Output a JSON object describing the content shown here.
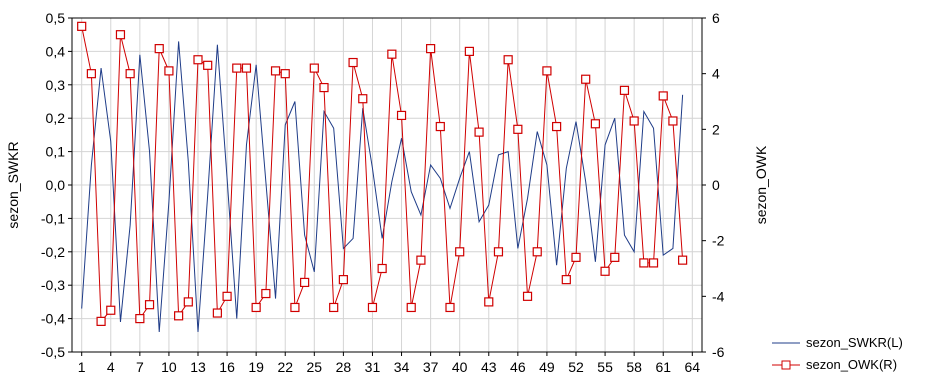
{
  "chart_data": {
    "type": "line",
    "title": "",
    "x": [
      1,
      2,
      3,
      4,
      5,
      6,
      7,
      8,
      9,
      10,
      11,
      12,
      13,
      14,
      15,
      16,
      17,
      18,
      19,
      20,
      21,
      22,
      23,
      24,
      25,
      26,
      27,
      28,
      29,
      30,
      31,
      32,
      33,
      34,
      35,
      36,
      37,
      38,
      39,
      40,
      41,
      42,
      43,
      44,
      45,
      46,
      47,
      48,
      49,
      50,
      51,
      52,
      53,
      54,
      55,
      56,
      57,
      58,
      59,
      60,
      61,
      62,
      63
    ],
    "xlim": [
      0,
      65
    ],
    "xticks": [
      1,
      4,
      7,
      10,
      13,
      16,
      19,
      22,
      25,
      28,
      31,
      34,
      37,
      40,
      43,
      46,
      49,
      52,
      55,
      58,
      61,
      64
    ],
    "xlabel": "",
    "left_axis": {
      "label": "sezon_SWKR",
      "ylim": [
        -0.5,
        0.5
      ],
      "ticks": [
        "-0,5",
        "-0,4",
        "-0,3",
        "-0,2",
        "-0,1",
        "0,0",
        "0,1",
        "0,2",
        "0,3",
        "0,4",
        "0,5"
      ]
    },
    "right_axis": {
      "label": "sezon_OWK",
      "ylim": [
        -6,
        6
      ],
      "ticks": [
        "-6",
        "-4",
        "-2",
        "0",
        "2",
        "4",
        "6"
      ]
    },
    "series": [
      {
        "name": "sezon_SWKR(L)",
        "axis": "left",
        "color": "#1f3c88",
        "marker": "none",
        "values": [
          -0.37,
          0.06,
          0.35,
          0.13,
          -0.41,
          -0.12,
          0.39,
          0.1,
          -0.44,
          -0.05,
          0.43,
          0.07,
          -0.44,
          -0.03,
          0.42,
          0.02,
          -0.4,
          0.12,
          0.36,
          0.01,
          -0.34,
          0.18,
          0.25,
          -0.15,
          -0.26,
          0.22,
          0.17,
          -0.19,
          -0.16,
          0.23,
          0.05,
          -0.16,
          0.01,
          0.14,
          -0.02,
          -0.09,
          0.06,
          0.02,
          -0.07,
          0.02,
          0.1,
          -0.11,
          -0.06,
          0.09,
          0.1,
          -0.19,
          -0.04,
          0.16,
          0.06,
          -0.24,
          0.05,
          0.19,
          0.01,
          -0.23,
          0.12,
          0.2,
          -0.15,
          -0.2,
          0.22,
          0.17,
          -0.21,
          -0.19,
          0.27
        ]
      },
      {
        "name": "sezon_OWK(R)",
        "axis": "right",
        "color": "#d00000",
        "marker": "square",
        "values": [
          5.7,
          4.0,
          -4.9,
          -4.5,
          5.4,
          4.0,
          -4.8,
          -4.3,
          4.9,
          4.1,
          -4.7,
          -4.2,
          4.5,
          4.3,
          -4.6,
          -4.0,
          4.2,
          4.2,
          -4.4,
          -3.9,
          4.1,
          4.0,
          -4.4,
          -3.5,
          4.2,
          3.5,
          -4.4,
          -3.4,
          4.4,
          3.1,
          -4.4,
          -3.0,
          4.7,
          2.5,
          -4.4,
          -2.7,
          4.9,
          2.1,
          -4.4,
          -2.4,
          4.8,
          1.9,
          -4.2,
          -2.4,
          4.5,
          2.0,
          -4.0,
          -2.4,
          4.1,
          2.1,
          -3.4,
          -2.6,
          3.8,
          2.2,
          -3.1,
          -2.6,
          3.4,
          2.3,
          -2.8,
          -2.8,
          3.2,
          2.3,
          -2.7
        ]
      }
    ],
    "grid": true,
    "legend_position": "bottom-right"
  }
}
